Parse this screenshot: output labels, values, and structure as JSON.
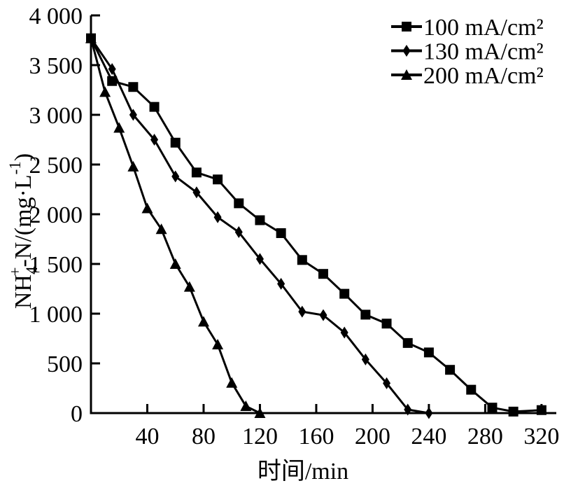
{
  "figure": {
    "background": "#ffffff",
    "ink_color": "#000000"
  },
  "chart_data": {
    "type": "line",
    "title": "",
    "xlabel": "时间/min",
    "ylabel": "NH4+-N/(mg·L-1)",
    "ylabel_parts": [
      {
        "t": "NH"
      },
      {
        "t": "4",
        "sub": true
      },
      {
        "t": "+",
        "sup": true,
        "stack": true
      },
      {
        "t": "-N/(mg·L"
      },
      {
        "t": "-1",
        "sup": true
      },
      {
        "t": ")"
      }
    ],
    "xlim": [
      0,
      330
    ],
    "ylim": [
      0,
      4000
    ],
    "grid": false,
    "legend_position": "top-right",
    "color": "#000000",
    "xticks": [
      {
        "value": 40,
        "label": "40"
      },
      {
        "value": 80,
        "label": "80"
      },
      {
        "value": 120,
        "label": "120"
      },
      {
        "value": 160,
        "label": "160"
      },
      {
        "value": 200,
        "label": "200"
      },
      {
        "value": 240,
        "label": "240"
      },
      {
        "value": 280,
        "label": "280"
      },
      {
        "value": 320,
        "label": "320"
      }
    ],
    "yticks": [
      {
        "value": 0,
        "label": "0"
      },
      {
        "value": 500,
        "label": "500"
      },
      {
        "value": 1000,
        "label": "1 000"
      },
      {
        "value": 1500,
        "label": "1 500"
      },
      {
        "value": 2000,
        "label": "2 000"
      },
      {
        "value": 2500,
        "label": "2 500"
      },
      {
        "value": 3000,
        "label": "3 000"
      },
      {
        "value": 3500,
        "label": "3 500"
      },
      {
        "value": 4000,
        "label": "4 000"
      }
    ],
    "series": [
      {
        "name": "100 mA/cm²",
        "marker": "square",
        "x": [
          0,
          15,
          30,
          45,
          60,
          75,
          90,
          105,
          120,
          135,
          150,
          165,
          180,
          195,
          210,
          225,
          240,
          255,
          270,
          285,
          300,
          320
        ],
        "y": [
          3770,
          3340,
          3280,
          3080,
          2720,
          2420,
          2350,
          2110,
          1940,
          1810,
          1540,
          1400,
          1200,
          990,
          900,
          705,
          610,
          435,
          235,
          55,
          15,
          30
        ]
      },
      {
        "name": "130 mA/cm²",
        "marker": "diamond",
        "x": [
          0,
          15,
          30,
          45,
          60,
          75,
          90,
          105,
          120,
          135,
          150,
          165,
          180,
          195,
          210,
          225,
          240
        ],
        "y": [
          3770,
          3460,
          3000,
          2750,
          2380,
          2220,
          1970,
          1820,
          1550,
          1300,
          1020,
          985,
          810,
          540,
          300,
          35,
          0
        ]
      },
      {
        "name": "200 mA/cm²",
        "marker": "triangle",
        "x": [
          0,
          10,
          20,
          30,
          40,
          50,
          60,
          70,
          80,
          90,
          100,
          110,
          120
        ],
        "y": [
          3770,
          3230,
          2870,
          2480,
          2060,
          1850,
          1500,
          1270,
          920,
          690,
          305,
          70,
          0
        ]
      }
    ]
  }
}
